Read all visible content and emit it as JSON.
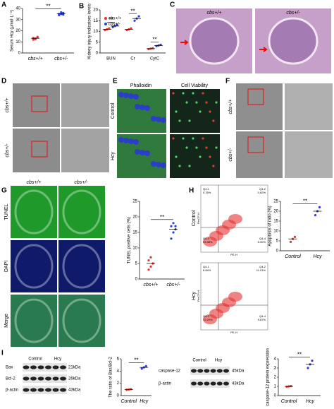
{
  "chart_data": [
    {
      "type": "dot",
      "panel": "A",
      "ylabel": "Serum Hcy (μmol·L⁻¹)",
      "categories": [
        "cbs+/+",
        "cbs+/-"
      ],
      "ylim": [
        0,
        40
      ],
      "yticks": [
        0,
        10,
        20,
        30,
        40
      ],
      "values": [
        13.2,
        35.2
      ],
      "points": [
        [
          12,
          13,
          14,
          13.5,
          12.5,
          14.5
        ],
        [
          34,
          35,
          36,
          35,
          36.5,
          34.5
        ]
      ],
      "colors": [
        "#e8312f",
        "#2b3ed6"
      ],
      "annotation": "**"
    },
    {
      "type": "dot",
      "panel": "B",
      "ylabel": "Kidney injury indicators levels",
      "categories": [
        "BUN",
        "Cr",
        "CytC"
      ],
      "ylim": [
        0,
        20
      ],
      "yticks": [
        0,
        5,
        10,
        15,
        20
      ],
      "series": [
        {
          "name": "cbs+/+",
          "color": "#e8312f",
          "values": [
            11,
            11,
            2
          ],
          "points": [
            [
              10.6,
              11,
              11.4
            ],
            [
              10.6,
              11,
              11.4
            ],
            [
              1.8,
              2,
              2.2
            ]
          ]
        },
        {
          "name": "cbs+/-",
          "color": "#2b3ed6",
          "values": [
            12.5,
            16,
            3.5
          ],
          "points": [
            [
              12,
              12.5,
              13
            ],
            [
              15,
              16,
              17
            ],
            [
              3.2,
              3.5,
              3.8
            ]
          ]
        }
      ],
      "annotations": [
        "**",
        "**",
        "**"
      ]
    },
    {
      "type": "dot",
      "ylabel": "TUNEL positive cells (%)",
      "categories": [
        "cbs+/+",
        "cbs+/-"
      ],
      "ylim": [
        0,
        25
      ],
      "yticks": [
        0,
        5,
        10,
        15,
        20,
        25
      ],
      "values": [
        5,
        16
      ],
      "points": [
        [
          3,
          4,
          5,
          6,
          7,
          5
        ],
        [
          13,
          15,
          16,
          17,
          18,
          17
        ]
      ],
      "colors": [
        "#e8312f",
        "#2b3ed6"
      ],
      "annotation": "**"
    },
    {
      "type": "dot",
      "ylabel": "Apoptosis of ratio (%)",
      "categories": [
        "Control",
        "Hcy"
      ],
      "ylim": [
        0,
        25
      ],
      "yticks": [
        0,
        5,
        10,
        15,
        20,
        25
      ],
      "values": [
        6,
        20
      ],
      "points": [
        [
          4.5,
          6,
          7
        ],
        [
          18,
          20,
          22
        ]
      ],
      "colors": [
        "#e8312f",
        "#2b3ed6"
      ],
      "annotation": "**"
    },
    {
      "type": "dot",
      "ylabel": "The ratio of Bax/Bcl-2",
      "categories": [
        "Control",
        "Hcy"
      ],
      "ylim": [
        0,
        6
      ],
      "yticks": [
        0,
        2,
        4,
        6
      ],
      "values": [
        1,
        4.6
      ],
      "points": [
        [
          0.95,
          1,
          1.05
        ],
        [
          4.4,
          4.6,
          4.8
        ]
      ],
      "colors": [
        "#e8312f",
        "#2b3ed6"
      ],
      "annotation": "**"
    },
    {
      "type": "dot",
      "ylabel": "caspase-12 protein expression",
      "categories": [
        "Control",
        "Hcy"
      ],
      "ylim": [
        0,
        4
      ],
      "yticks": [
        0,
        1,
        2,
        3,
        4
      ],
      "values": [
        1,
        3.4
      ],
      "points": [
        [
          0.97,
          1,
          1.03
        ],
        [
          3,
          3.4,
          3.8
        ]
      ],
      "colors": [
        "#e8312f",
        "#2b3ed6"
      ],
      "annotation": "**"
    }
  ],
  "figure": {
    "C": {
      "letter": "C",
      "left": "cbs+/+",
      "right": "cbs+/-"
    },
    "D": {
      "letter": "D",
      "top": "cbs+/+",
      "bottom": "cbs+/-"
    },
    "E": {
      "letter": "E",
      "col1": "Phalloidin",
      "col2": "Cell Viability",
      "row1": "Control",
      "row2": "Hcy"
    },
    "F": {
      "letter": "F",
      "top": "cbs+/+",
      "bottom": "cbs+/-"
    },
    "G": {
      "letter": "G",
      "col1": "cbs+/+",
      "col2": "cbs+/-",
      "row1": "TUNEL",
      "row2": "DAPI",
      "row3": "Merge"
    },
    "H": {
      "letter": "H",
      "row1": "Control",
      "row2": "Hcy",
      "xaxis": "PE-H",
      "yaxis": "PerCP-H",
      "quadrants": [
        "Q4-1",
        "Q4-2",
        "Q4-3",
        "Q4-4"
      ],
      "control": [
        "0.76%",
        "0.62%",
        "93.38%",
        "5.30%"
      ],
      "hcy": [
        "6.84%",
        "11.01%",
        "72.29%",
        "9.87%"
      ]
    },
    "I": {
      "letter": "I",
      "control": "Control",
      "hcy": "Hcy",
      "blot1": [
        "Bax",
        "Bcl-2",
        "β-actin"
      ],
      "kda1": [
        "21kDa",
        "26kDa",
        "43kDa"
      ],
      "blot2": [
        "caspase-12",
        "β-actin"
      ],
      "kda2": [
        "45kDa",
        "43kDa"
      ]
    }
  }
}
